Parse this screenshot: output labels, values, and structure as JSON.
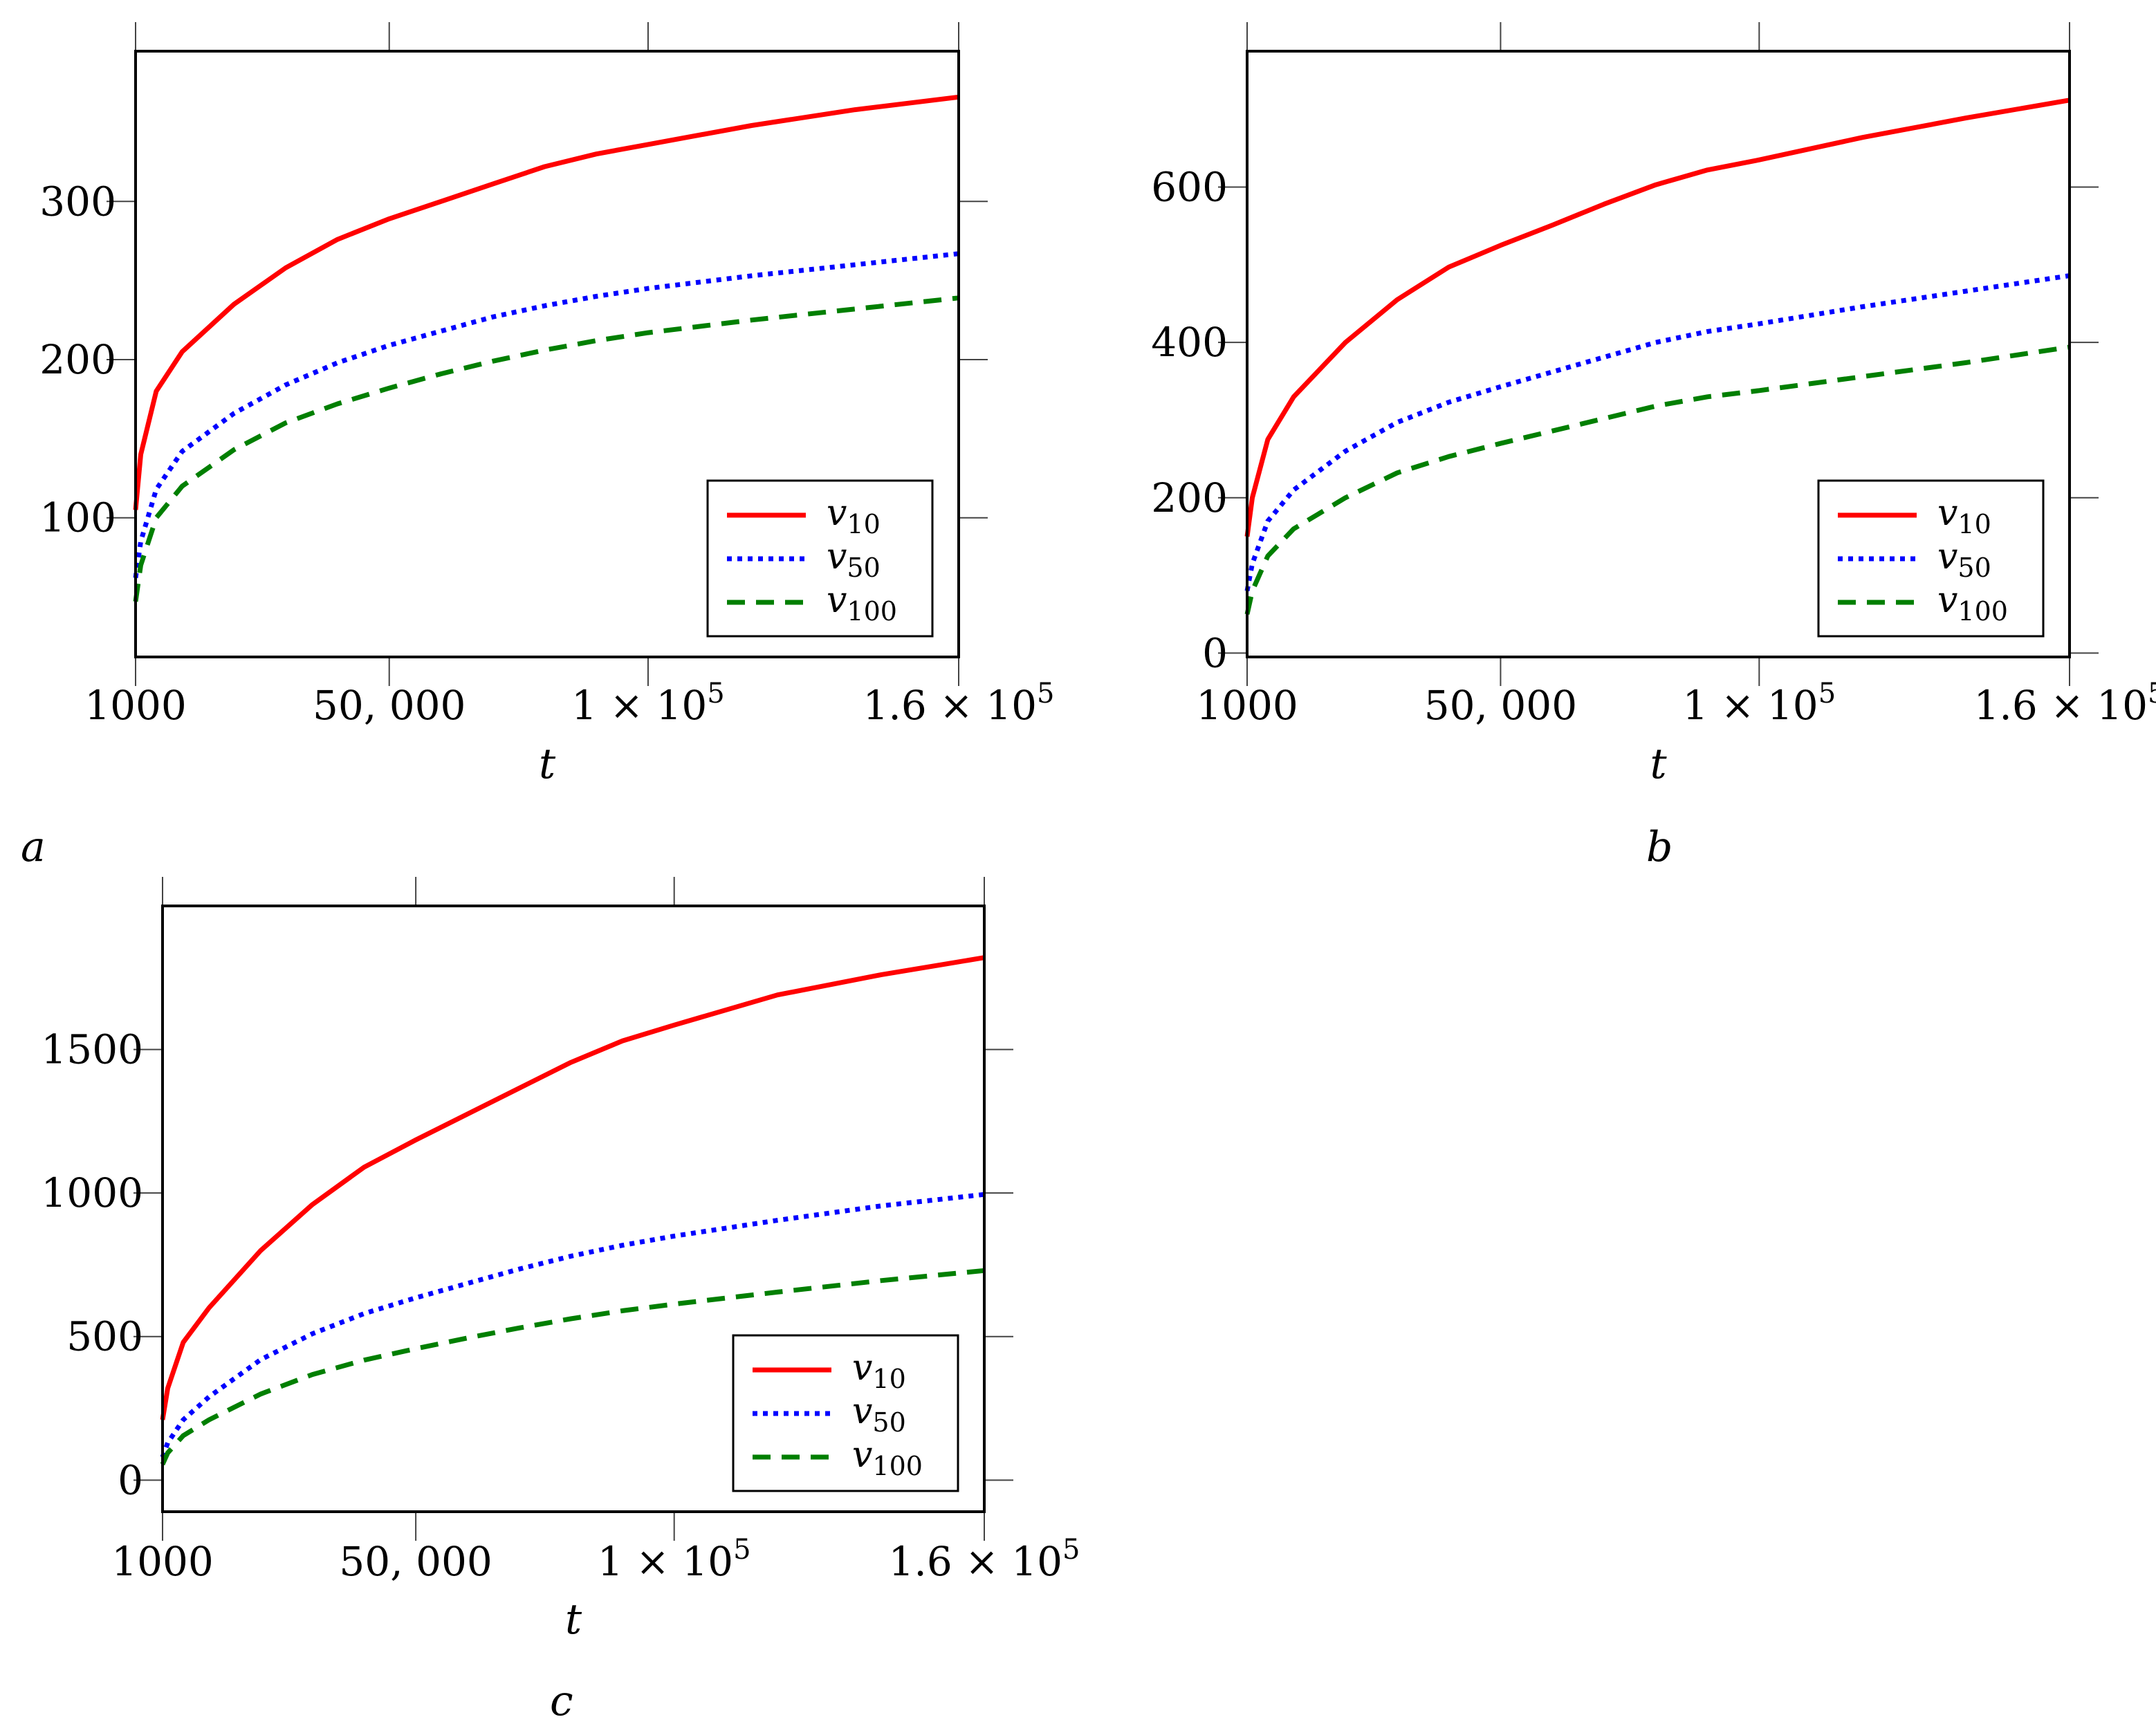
{
  "colors": {
    "v10": "#ff0000",
    "v50": "#0000ff",
    "v100": "#007f00"
  },
  "chart_data": [
    {
      "type": "line",
      "panel_label": "a",
      "xlabel": "t",
      "xlim": [
        1000,
        160000
      ],
      "ylim": [
        12,
        395
      ],
      "x_ticks": [
        1000,
        50000,
        100000,
        160000
      ],
      "x_tick_labels": [
        {
          "mant": "1000",
          "exp": ""
        },
        {
          "mant": "50, 000",
          "exp": ""
        },
        {
          "mant": "1 × 10",
          "exp": "5"
        },
        {
          "mant": "1.6 × 10",
          "exp": "5"
        }
      ],
      "y_ticks": [
        100,
        200,
        300
      ],
      "y_tick_labels": [
        "100",
        "200",
        "300"
      ],
      "legend_position": "lower-right",
      "x": [
        1000,
        2000,
        5000,
        10000,
        20000,
        30000,
        40000,
        50000,
        60000,
        70000,
        80000,
        90000,
        100000,
        120000,
        140000,
        160000
      ],
      "series": [
        {
          "key": "v10",
          "name": "v",
          "sub": "10",
          "style": "solid",
          "values": [
            105,
            140,
            180,
            205,
            235,
            258,
            276,
            289,
            300,
            311,
            322,
            330,
            336,
            348,
            358,
            366
          ]
        },
        {
          "key": "v50",
          "name": "v",
          "sub": "50",
          "style": "dotted",
          "values": [
            62,
            85,
            118,
            142,
            166,
            184,
            198,
            209,
            218,
            227,
            234,
            240,
            245,
            253,
            260,
            267
          ]
        },
        {
          "key": "v100",
          "name": "v",
          "sub": "100",
          "style": "dashed",
          "values": [
            47,
            70,
            100,
            120,
            143,
            160,
            172,
            182,
            191,
            199,
            206,
            212,
            217,
            225,
            232,
            239
          ]
        }
      ]
    },
    {
      "type": "line",
      "panel_label": "b",
      "xlabel": "t",
      "xlim": [
        1000,
        160000
      ],
      "ylim": [
        -5,
        775
      ],
      "x_ticks": [
        1000,
        50000,
        100000,
        160000
      ],
      "x_tick_labels": [
        {
          "mant": "1000",
          "exp": ""
        },
        {
          "mant": "50, 000",
          "exp": ""
        },
        {
          "mant": "1 × 10",
          "exp": "5"
        },
        {
          "mant": "1.6 × 10",
          "exp": "5"
        }
      ],
      "y_ticks": [
        0,
        200,
        400,
        600
      ],
      "y_tick_labels": [
        "0",
        "200",
        "400",
        "600"
      ],
      "legend_position": "lower-right",
      "x": [
        1000,
        2000,
        5000,
        10000,
        20000,
        30000,
        40000,
        50000,
        60000,
        70000,
        80000,
        90000,
        100000,
        120000,
        140000,
        160000
      ],
      "series": [
        {
          "key": "v10",
          "name": "v",
          "sub": "10",
          "style": "solid",
          "values": [
            150,
            200,
            275,
            330,
            400,
            455,
            497,
            525,
            551,
            578,
            603,
            622,
            635,
            664,
            689,
            712
          ]
        },
        {
          "key": "v50",
          "name": "v",
          "sub": "50",
          "style": "dotted",
          "values": [
            80,
            115,
            170,
            210,
            260,
            297,
            323,
            343,
            362,
            381,
            400,
            414,
            424,
            446,
            466,
            486
          ]
        },
        {
          "key": "v100",
          "name": "v",
          "sub": "100",
          "style": "dashed",
          "values": [
            50,
            80,
            125,
            160,
            200,
            232,
            253,
            270,
            286,
            302,
            318,
            330,
            338,
            356,
            374,
            394
          ]
        }
      ]
    },
    {
      "type": "line",
      "panel_label": "c",
      "xlabel": "t",
      "xlim": [
        1000,
        160000
      ],
      "ylim": [
        -110,
        2000
      ],
      "x_ticks": [
        1000,
        50000,
        100000,
        160000
      ],
      "x_tick_labels": [
        {
          "mant": "1000",
          "exp": ""
        },
        {
          "mant": "50, 000",
          "exp": ""
        },
        {
          "mant": "1 × 10",
          "exp": "5"
        },
        {
          "mant": "1.6 × 10",
          "exp": "5"
        }
      ],
      "y_ticks": [
        0,
        500,
        1000,
        1500
      ],
      "y_tick_labels": [
        "0",
        "500",
        "1000",
        "1500"
      ],
      "legend_position": "lower-right",
      "x": [
        1000,
        2000,
        5000,
        10000,
        20000,
        30000,
        40000,
        50000,
        60000,
        70000,
        80000,
        90000,
        100000,
        120000,
        140000,
        160000
      ],
      "series": [
        {
          "key": "v10",
          "name": "v",
          "sub": "10",
          "style": "solid",
          "values": [
            210,
            320,
            480,
            600,
            800,
            960,
            1090,
            1185,
            1275,
            1365,
            1455,
            1530,
            1585,
            1690,
            1760,
            1820
          ]
        },
        {
          "key": "v50",
          "name": "v",
          "sub": "50",
          "style": "dotted",
          "values": [
            80,
            130,
            210,
            290,
            420,
            510,
            580,
            635,
            685,
            735,
            780,
            818,
            850,
            905,
            955,
            995
          ]
        },
        {
          "key": "v100",
          "name": "v",
          "sub": "100",
          "style": "dashed",
          "values": [
            55,
            95,
            155,
            210,
            300,
            368,
            418,
            458,
            495,
            530,
            562,
            590,
            613,
            655,
            695,
            730
          ]
        }
      ]
    }
  ]
}
